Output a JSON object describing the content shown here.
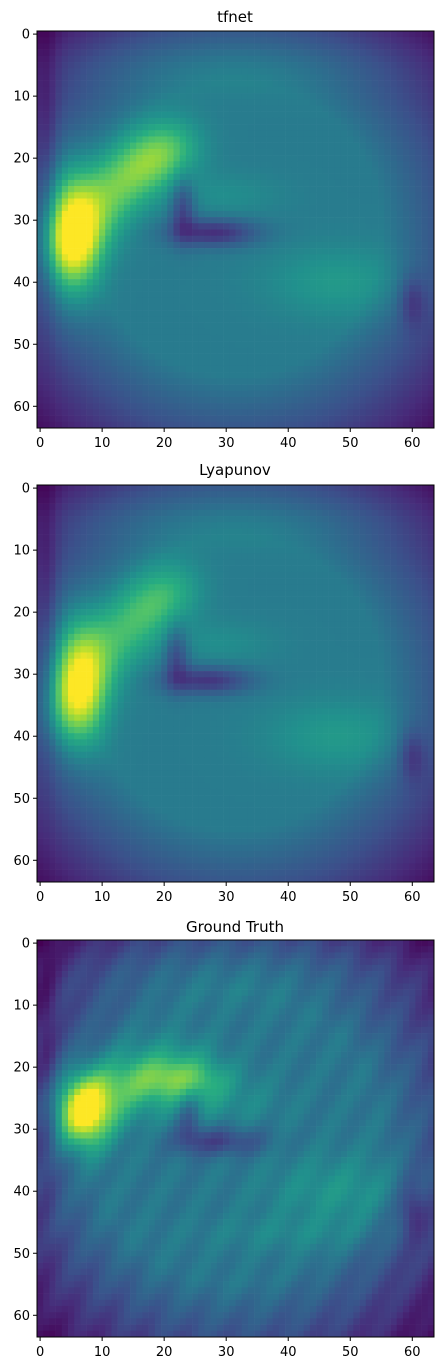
{
  "chart_data": [
    {
      "type": "heatmap",
      "title": "tfnet",
      "colormap": "viridis",
      "grid_size": [
        64,
        64
      ],
      "x_ticks": [
        "0",
        "10",
        "20",
        "30",
        "40",
        "50",
        "60"
      ],
      "y_ticks": [
        "0",
        "10",
        "20",
        "30",
        "40",
        "50",
        "60"
      ],
      "xlim": [
        -0.5,
        63.5
      ],
      "ylim": [
        63.5,
        -0.5
      ],
      "grid": false,
      "features": {
        "background": 0.42,
        "main_blob": {
          "center": [
            5,
            32
          ],
          "peak": 1.0,
          "spread": [
            3,
            7
          ]
        },
        "arc": {
          "peak": 0.72,
          "start": [
            5,
            35
          ],
          "end": [
            22,
            18
          ]
        },
        "dark_curve": {
          "center": [
            28,
            32
          ],
          "depth": 0.28
        },
        "corners": "dark"
      }
    },
    {
      "type": "heatmap",
      "title": "Lyapunov",
      "colormap": "viridis",
      "grid_size": [
        64,
        64
      ],
      "x_ticks": [
        "0",
        "10",
        "20",
        "30",
        "40",
        "50",
        "60"
      ],
      "y_ticks": [
        "0",
        "10",
        "20",
        "30",
        "40",
        "50",
        "60"
      ],
      "xlim": [
        -0.5,
        63.5
      ],
      "ylim": [
        63.5,
        -0.5
      ],
      "grid": false,
      "features": {
        "background": 0.42,
        "main_blob": {
          "center": [
            6,
            31
          ],
          "peak": 0.92,
          "spread": [
            3,
            7
          ]
        },
        "arc": {
          "peak": 0.66,
          "start": [
            4,
            37
          ],
          "end": [
            22,
            16
          ]
        },
        "dark_curve": {
          "center": [
            27,
            31
          ],
          "depth": 0.26
        },
        "corners": "dark"
      }
    },
    {
      "type": "heatmap",
      "title": "Ground Truth",
      "colormap": "viridis",
      "grid_size": [
        64,
        64
      ],
      "x_ticks": [
        "0",
        "10",
        "20",
        "30",
        "40",
        "50",
        "60"
      ],
      "y_ticks": [
        "0",
        "10",
        "20",
        "30",
        "40",
        "50",
        "60"
      ],
      "xlim": [
        -0.5,
        63.5
      ],
      "ylim": [
        63.5,
        -0.5
      ],
      "grid": false,
      "features": {
        "background": 0.4,
        "main_blob": {
          "center": [
            7,
            27
          ],
          "peak": 0.95,
          "spread": [
            3,
            4
          ]
        },
        "arc": {
          "peak": 0.62,
          "start": [
            6,
            28
          ],
          "end": [
            26,
            22
          ]
        },
        "dark_curve": {
          "center": [
            29,
            32
          ],
          "depth": 0.2
        },
        "corners": "dark"
      }
    }
  ]
}
